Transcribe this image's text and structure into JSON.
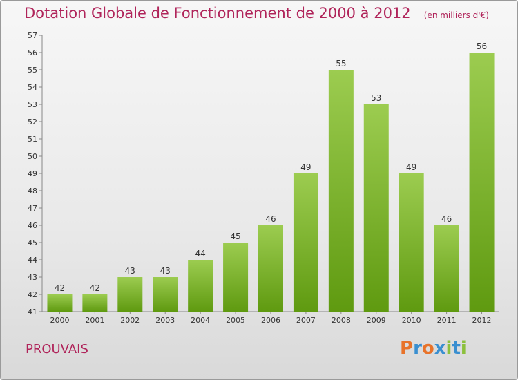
{
  "header": {
    "title": "Dotation Globale de Fonctionnement de 2000 à 2012",
    "unit": "(en milliers d'€)"
  },
  "footer": {
    "commune": "PROUVAIS",
    "logo_letters": [
      "P",
      "r",
      "o",
      "x",
      "i",
      "t",
      "i"
    ],
    "logo_colors": [
      "#e8732a",
      "#3a8fd0",
      "#e8732a",
      "#3a8fd0",
      "#8cc03c",
      "#3a8fd0",
      "#8cc03c"
    ]
  },
  "colors": {
    "bar_light": "#9ccc50",
    "bar_dark": "#5f9a10",
    "title": "#b0245a"
  },
  "chart_data": {
    "type": "bar",
    "title": "Dotation Globale de Fonctionnement de 2000 à 2012",
    "subtitle": "(en milliers d'€)",
    "categories": [
      "2000",
      "2001",
      "2002",
      "2003",
      "2004",
      "2005",
      "2006",
      "2007",
      "2008",
      "2009",
      "2010",
      "2011",
      "2012"
    ],
    "values": [
      42,
      42,
      43,
      43,
      44,
      45,
      46,
      49,
      55,
      53,
      49,
      46,
      56
    ],
    "ylim": [
      41,
      57
    ],
    "yticks": [
      41,
      42,
      43,
      44,
      45,
      46,
      47,
      48,
      49,
      50,
      51,
      52,
      53,
      54,
      55,
      56,
      57
    ],
    "grid": false,
    "legend": "none"
  }
}
